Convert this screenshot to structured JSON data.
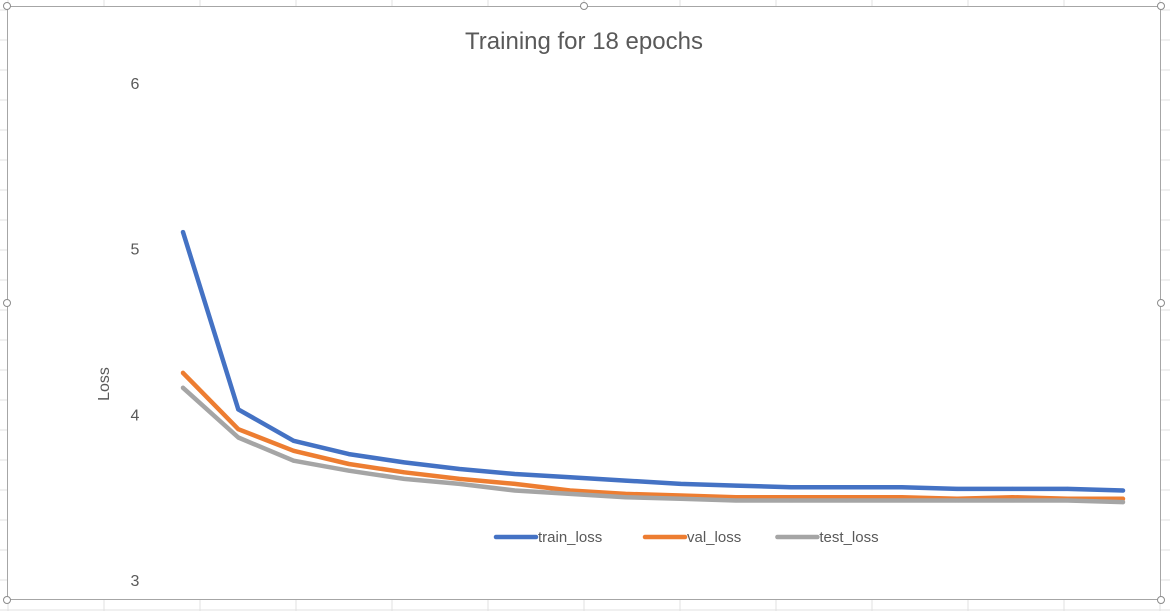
{
  "chart_data": {
    "type": "line",
    "title": "Training for 18 epochs",
    "xlabel": "",
    "ylabel": "Loss",
    "ylim": [
      3,
      6
    ],
    "y_ticks": [
      "3",
      "4",
      "5",
      "6"
    ],
    "grid": false,
    "legend_position": "bottom",
    "x": [
      1,
      2,
      3,
      4,
      5,
      6,
      7,
      8,
      9,
      10,
      11,
      12,
      13,
      14,
      15,
      16,
      17,
      18
    ],
    "series": [
      {
        "name": "train_loss",
        "color": "#4472C4",
        "values": [
          5.1,
          4.03,
          3.84,
          3.76,
          3.71,
          3.67,
          3.64,
          3.62,
          3.6,
          3.58,
          3.57,
          3.56,
          3.56,
          3.56,
          3.55,
          3.55,
          3.55,
          3.54
        ]
      },
      {
        "name": "val_loss",
        "color": "#ED7D31",
        "values": [
          4.25,
          3.91,
          3.78,
          3.7,
          3.65,
          3.61,
          3.58,
          3.54,
          3.52,
          3.51,
          3.5,
          3.5,
          3.5,
          3.5,
          3.49,
          3.5,
          3.49,
          3.49
        ]
      },
      {
        "name": "test_loss",
        "color": "#A5A5A5",
        "values": [
          4.16,
          3.86,
          3.72,
          3.66,
          3.61,
          3.58,
          3.54,
          3.52,
          3.5,
          3.49,
          3.48,
          3.48,
          3.48,
          3.48,
          3.48,
          3.48,
          3.48,
          3.47
        ]
      }
    ]
  }
}
